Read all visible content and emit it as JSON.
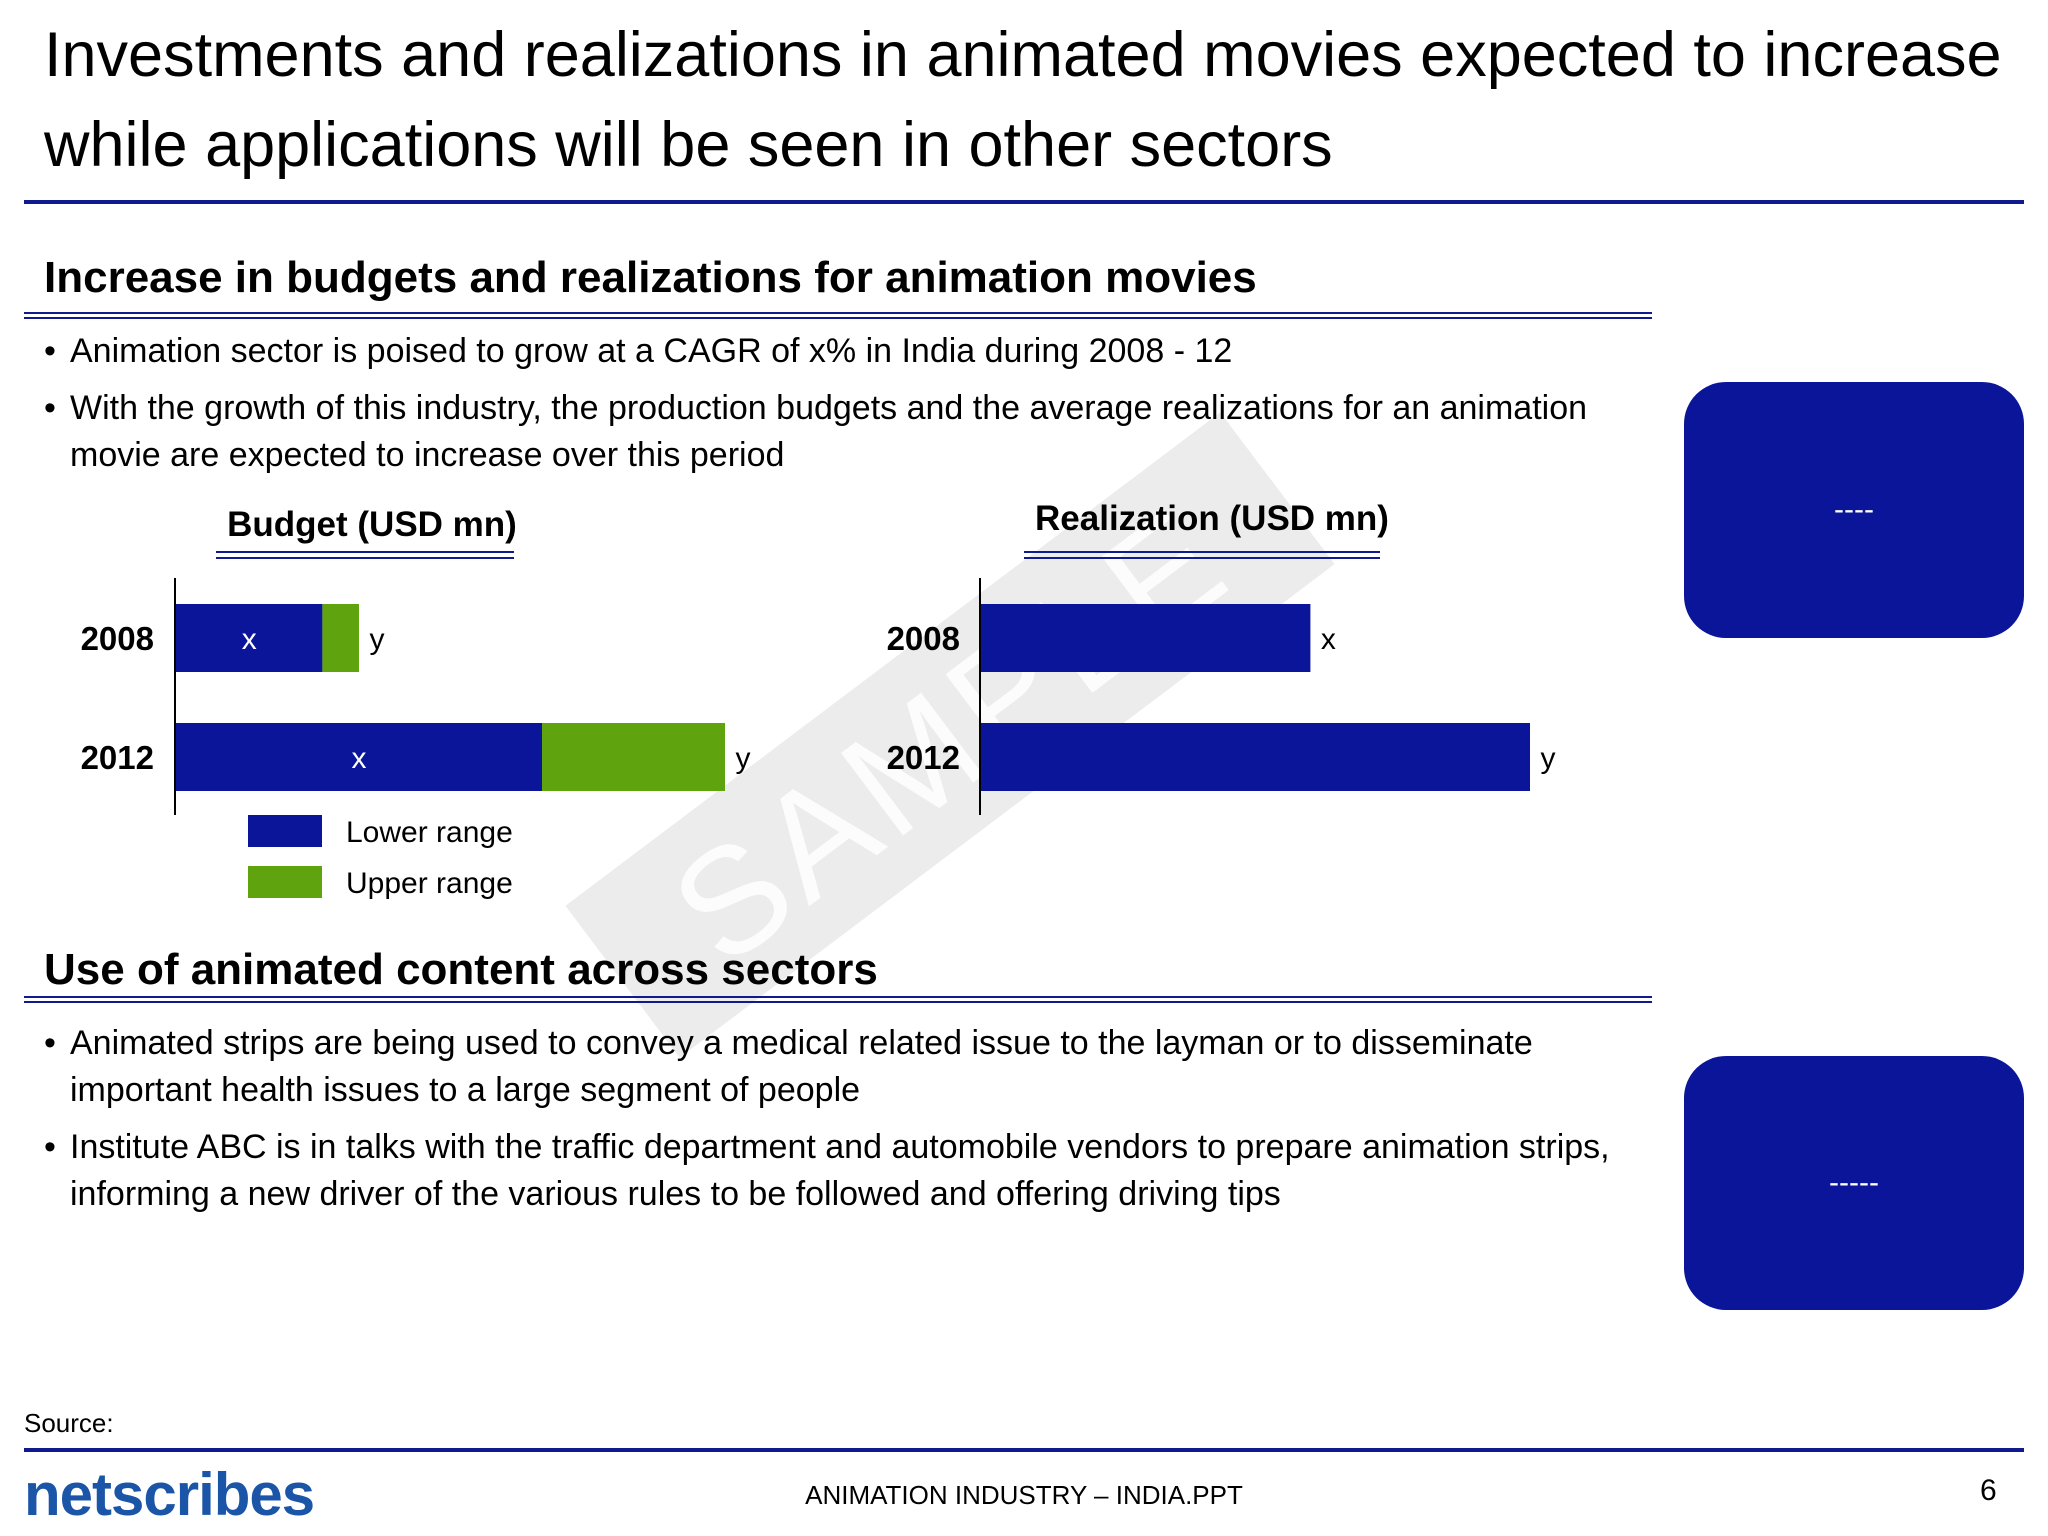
{
  "title": "Investments and realizations in animated movies expected to increase while applications will be seen in other sectors",
  "section1": {
    "heading": "Increase in budgets and realizations for animation movies",
    "bullets": [
      "Animation sector is poised to grow at a CAGR of x% in India during 2008 - 12",
      "With the growth of this industry, the production budgets and the average realizations for an animation movie are expected to increase over this period"
    ]
  },
  "section2": {
    "heading": "Use of animated content across sectors",
    "bullets": [
      "Animated strips are being used to convey a medical related issue to the layman or to disseminate important health issues to a large segment of people",
      "Institute ABC is in talks with the traffic department and automobile vendors to prepare animation strips, informing a new driver of the various rules to be followed and offering driving tips"
    ]
  },
  "callouts": [
    "----",
    "-----"
  ],
  "watermark": "SAMPLE",
  "colors": {
    "navy": "#0b1599",
    "green": "#5fa30f",
    "rule": "#101a8c"
  },
  "chart_data": [
    {
      "type": "bar",
      "orientation": "horizontal",
      "stacked": true,
      "title": "Budget (USD mn)",
      "categories": [
        "2008",
        "2012"
      ],
      "series": [
        {
          "name": "Lower range",
          "values": [
            4,
            10
          ],
          "labels": [
            "x",
            "x"
          ],
          "color": "#0b1599"
        },
        {
          "name": "Upper range",
          "values": [
            1,
            5
          ],
          "labels": [
            "y",
            "y"
          ],
          "color": "#5fa30f"
        }
      ],
      "xlim": [
        0,
        15
      ],
      "legend": "bottom"
    },
    {
      "type": "bar",
      "orientation": "horizontal",
      "title": "Realization (USD mn)",
      "categories": [
        "2008",
        "2012"
      ],
      "series": [
        {
          "values": [
            6,
            10
          ],
          "labels": [
            "x",
            "y"
          ],
          "color": "#0b1599"
        }
      ],
      "xlim": [
        0,
        10
      ]
    }
  ],
  "footer": {
    "source": "Source:",
    "logo": "netscribes",
    "center": "ANIMATION INDUSTRY – INDIA.PPT",
    "page": "6"
  }
}
